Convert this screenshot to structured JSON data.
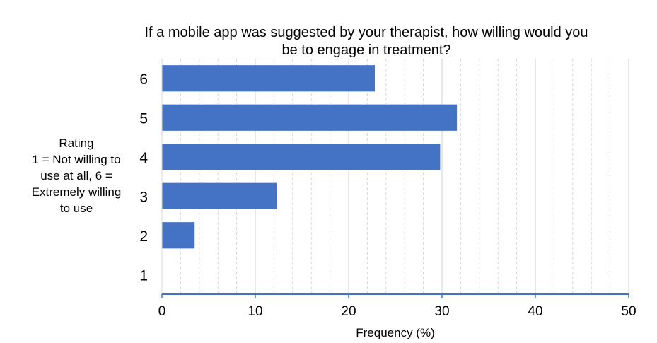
{
  "chart_data": {
    "type": "bar",
    "orientation": "horizontal",
    "title_lines": [
      "If a mobile app was suggested by your therapist, how willing would you",
      "be to engage in treatment?"
    ],
    "ylabel_lines": [
      "Rating",
      "1 = Not willing to",
      "use at all, 6 =",
      "Extremely willing",
      "to use"
    ],
    "xlabel": "Frequency (%)",
    "categories": [
      "6",
      "5",
      "4",
      "3",
      "2",
      "1"
    ],
    "values": [
      22.8,
      31.6,
      29.8,
      12.3,
      3.5,
      0
    ],
    "xlim": [
      0,
      50
    ],
    "xticks": [
      "0",
      "10",
      "20",
      "30",
      "40",
      "50"
    ],
    "grid": true,
    "bar_color": "#4472C4",
    "axis_color": "#4472C4",
    "grid_color": "#D9D9D9"
  }
}
